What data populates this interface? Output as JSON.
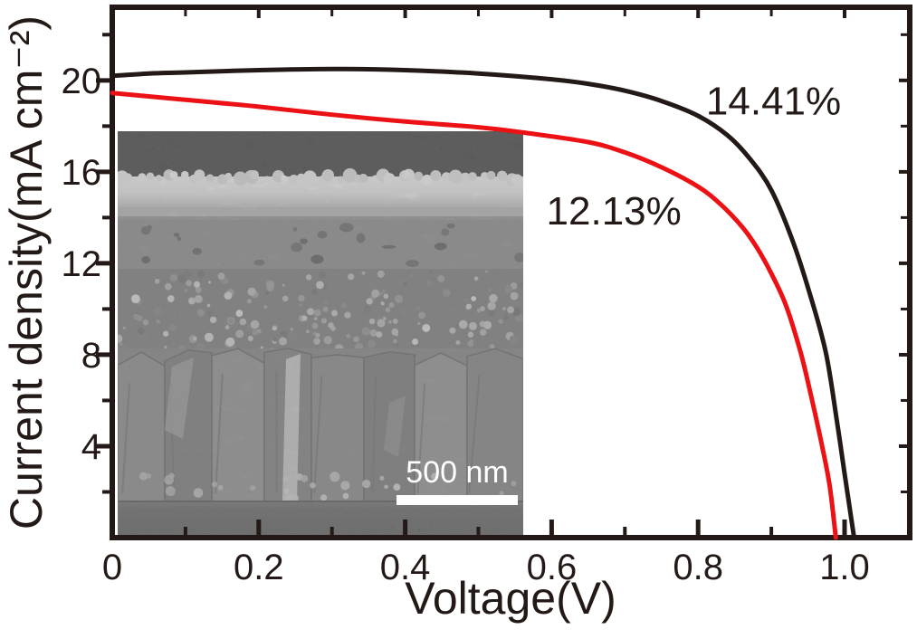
{
  "figure": {
    "kind": "solar-cell J-V characteristic figure with cross-sectional SEM inset"
  },
  "chart_data": {
    "type": "line",
    "title": "",
    "xlabel": "Voltage(V)",
    "ylabel": "Current density(mA cm⁻²)",
    "xlim": [
      0,
      1.089
    ],
    "ylim": [
      0,
      23.2
    ],
    "grid": false,
    "legend": "none",
    "x_major_ticks": [
      0,
      0.2,
      0.4,
      0.6,
      0.8,
      1.0
    ],
    "x_tick_labels": [
      "0",
      "0.2",
      "0.4",
      "0.6",
      "0.8",
      "1.0"
    ],
    "x_minor_ticks": [
      0.1,
      0.3,
      0.5,
      0.7,
      0.9
    ],
    "y_major_ticks": [
      4,
      8,
      12,
      16,
      20
    ],
    "y_tick_labels": [
      "4",
      "8",
      "12",
      "16",
      "20"
    ],
    "y_minor_ticks": [
      2,
      6,
      10,
      14,
      18,
      22
    ],
    "series": [
      {
        "label": "14.41%",
        "color": "#231a17",
        "points": [
          [
            0,
            20.2
          ],
          [
            0.05,
            20.3
          ],
          [
            0.1,
            20.35
          ],
          [
            0.2,
            20.45
          ],
          [
            0.3,
            20.5
          ],
          [
            0.4,
            20.45
          ],
          [
            0.5,
            20.3
          ],
          [
            0.6,
            20.05
          ],
          [
            0.65,
            19.85
          ],
          [
            0.7,
            19.55
          ],
          [
            0.75,
            19.1
          ],
          [
            0.8,
            18.45
          ],
          [
            0.84,
            17.6
          ],
          [
            0.87,
            16.6
          ],
          [
            0.9,
            15.2
          ],
          [
            0.93,
            12.9
          ],
          [
            0.955,
            10.4
          ],
          [
            0.975,
            8.0
          ],
          [
            0.99,
            5.0
          ],
          [
            1.0,
            2.8
          ],
          [
            1.013,
            0
          ]
        ]
      },
      {
        "label": "12.13%",
        "color": "#ec1115",
        "points": [
          [
            0,
            19.45
          ],
          [
            0.1,
            19.15
          ],
          [
            0.2,
            18.85
          ],
          [
            0.3,
            18.5
          ],
          [
            0.4,
            18.2
          ],
          [
            0.5,
            17.95
          ],
          [
            0.561,
            17.72
          ],
          [
            0.65,
            17.3
          ],
          [
            0.7,
            16.85
          ],
          [
            0.75,
            16.2
          ],
          [
            0.8,
            15.35
          ],
          [
            0.83,
            14.6
          ],
          [
            0.86,
            13.6
          ],
          [
            0.88,
            12.7
          ],
          [
            0.9,
            11.55
          ],
          [
            0.92,
            10.15
          ],
          [
            0.94,
            8.1
          ],
          [
            0.955,
            6.1
          ],
          [
            0.97,
            3.9
          ],
          [
            0.98,
            2.2
          ],
          [
            0.988,
            0
          ]
        ]
      }
    ],
    "annotations": [
      {
        "text": "14.41%",
        "x": 0.903,
        "y": 19.1,
        "color": "#231a17"
      },
      {
        "text": "12.13%",
        "x": 0.685,
        "y": 14.3,
        "color": "#231a17"
      }
    ]
  },
  "inset": {
    "description": "cross-section SEM micrograph of device layer stack",
    "scale_bar_label": "500 nm",
    "scale_bar_color": "#ffffff"
  }
}
